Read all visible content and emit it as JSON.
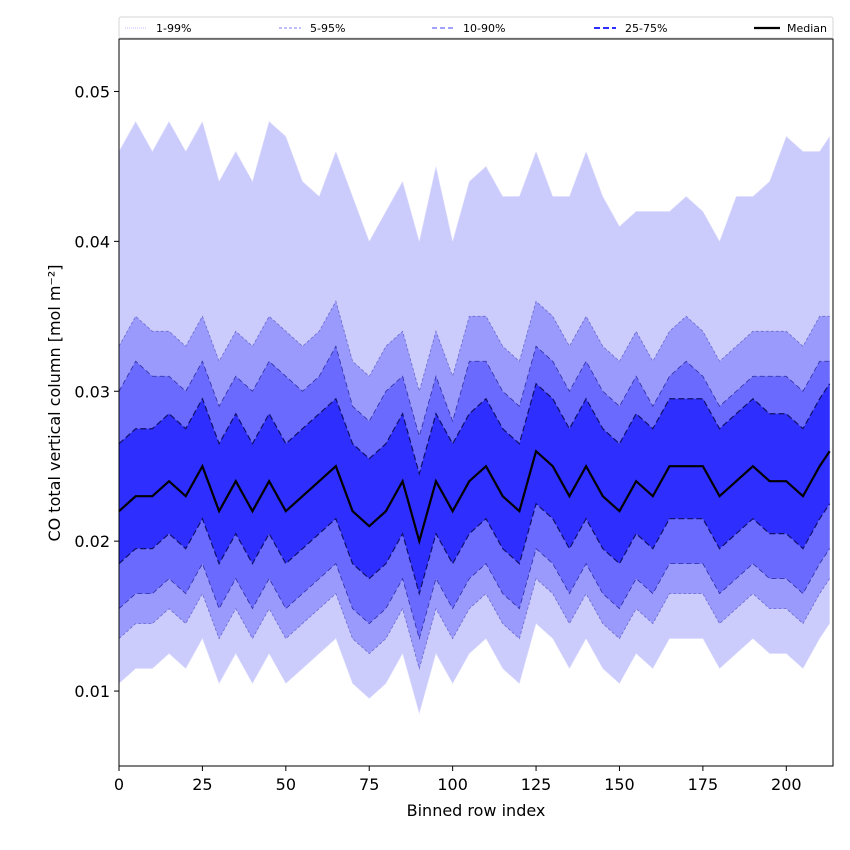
{
  "chart_data": {
    "type": "area",
    "title": "",
    "xlabel": "Binned row index",
    "ylabel": "CO total vertical column [mol m⁻²]",
    "xlim": [
      0,
      214
    ],
    "ylim": [
      0.005,
      0.0535
    ],
    "xticks": [
      0,
      25,
      50,
      75,
      100,
      125,
      150,
      175,
      200
    ],
    "yticks": [
      0.01,
      0.02,
      0.03,
      0.04,
      0.05
    ],
    "ytick_labels": [
      "0.01",
      "0.02",
      "0.03",
      "0.04",
      "0.05"
    ],
    "legend_position": "top (above plot, horizontal)",
    "x": [
      0,
      5,
      10,
      15,
      20,
      25,
      30,
      35,
      40,
      45,
      50,
      55,
      60,
      65,
      70,
      75,
      80,
      85,
      90,
      95,
      100,
      105,
      110,
      115,
      120,
      125,
      130,
      135,
      140,
      145,
      150,
      155,
      160,
      165,
      170,
      175,
      180,
      185,
      190,
      195,
      200,
      205,
      210,
      213
    ],
    "bands": [
      {
        "name": "1-99%",
        "color": "#ccccfc",
        "lower": [
          0.0105,
          0.0115,
          0.0115,
          0.0125,
          0.0115,
          0.0135,
          0.0105,
          0.0125,
          0.0105,
          0.0125,
          0.0105,
          0.0115,
          0.0125,
          0.0135,
          0.0105,
          0.0095,
          0.0105,
          0.0125,
          0.0085,
          0.0125,
          0.0105,
          0.0125,
          0.0135,
          0.0115,
          0.0105,
          0.0145,
          0.0135,
          0.0115,
          0.0135,
          0.0115,
          0.0105,
          0.0125,
          0.0115,
          0.0135,
          0.0135,
          0.0135,
          0.0115,
          0.0125,
          0.0135,
          0.0125,
          0.0125,
          0.0115,
          0.0135,
          0.0145
        ],
        "upper": [
          0.046,
          0.048,
          0.046,
          0.048,
          0.046,
          0.048,
          0.044,
          0.046,
          0.044,
          0.048,
          0.047,
          0.044,
          0.043,
          0.046,
          0.043,
          0.04,
          0.042,
          0.044,
          0.04,
          0.045,
          0.04,
          0.044,
          0.045,
          0.043,
          0.043,
          0.046,
          0.043,
          0.043,
          0.046,
          0.043,
          0.041,
          0.042,
          0.042,
          0.042,
          0.043,
          0.042,
          0.04,
          0.043,
          0.043,
          0.044,
          0.047,
          0.046,
          0.046,
          0.047
        ]
      },
      {
        "name": "5-95%",
        "color": "#9a9afd",
        "lower": [
          0.0135,
          0.0145,
          0.0145,
          0.0155,
          0.0145,
          0.0165,
          0.0135,
          0.0155,
          0.0135,
          0.0155,
          0.0135,
          0.0145,
          0.0155,
          0.0165,
          0.0135,
          0.0125,
          0.0135,
          0.0155,
          0.0115,
          0.0155,
          0.0135,
          0.0155,
          0.0165,
          0.0145,
          0.0135,
          0.0175,
          0.0165,
          0.0145,
          0.0165,
          0.0145,
          0.0135,
          0.0155,
          0.0145,
          0.0165,
          0.0165,
          0.0165,
          0.0145,
          0.0155,
          0.0165,
          0.0155,
          0.0155,
          0.0145,
          0.0165,
          0.0175
        ],
        "upper": [
          0.033,
          0.035,
          0.034,
          0.034,
          0.033,
          0.035,
          0.032,
          0.034,
          0.033,
          0.035,
          0.034,
          0.033,
          0.034,
          0.036,
          0.032,
          0.031,
          0.033,
          0.034,
          0.03,
          0.034,
          0.031,
          0.035,
          0.035,
          0.033,
          0.032,
          0.036,
          0.035,
          0.033,
          0.035,
          0.033,
          0.032,
          0.034,
          0.032,
          0.034,
          0.035,
          0.034,
          0.032,
          0.033,
          0.034,
          0.034,
          0.034,
          0.033,
          0.035,
          0.035
        ]
      },
      {
        "name": "10-90%",
        "color": "#6a6aff",
        "lower": [
          0.0155,
          0.0165,
          0.0165,
          0.0175,
          0.0165,
          0.0185,
          0.0155,
          0.0175,
          0.0155,
          0.0175,
          0.0155,
          0.0165,
          0.0175,
          0.0185,
          0.0155,
          0.0145,
          0.0155,
          0.0175,
          0.0135,
          0.0175,
          0.0155,
          0.0175,
          0.0185,
          0.0165,
          0.0155,
          0.0195,
          0.0185,
          0.0165,
          0.0185,
          0.0165,
          0.0155,
          0.0175,
          0.0165,
          0.0185,
          0.0185,
          0.0185,
          0.0165,
          0.0175,
          0.0185,
          0.0175,
          0.0175,
          0.0165,
          0.0185,
          0.0195
        ],
        "upper": [
          0.03,
          0.032,
          0.031,
          0.031,
          0.03,
          0.032,
          0.029,
          0.031,
          0.03,
          0.032,
          0.031,
          0.03,
          0.031,
          0.033,
          0.029,
          0.028,
          0.03,
          0.031,
          0.027,
          0.031,
          0.028,
          0.032,
          0.032,
          0.03,
          0.029,
          0.033,
          0.032,
          0.03,
          0.032,
          0.03,
          0.029,
          0.031,
          0.029,
          0.031,
          0.032,
          0.031,
          0.029,
          0.03,
          0.031,
          0.031,
          0.031,
          0.03,
          0.032,
          0.032
        ]
      },
      {
        "name": "25-75%",
        "color": "#2e2eff",
        "lower": [
          0.0185,
          0.0195,
          0.0195,
          0.0205,
          0.0195,
          0.0215,
          0.0185,
          0.0205,
          0.0185,
          0.0205,
          0.0185,
          0.0195,
          0.0205,
          0.0215,
          0.0185,
          0.0175,
          0.0185,
          0.0205,
          0.0165,
          0.0205,
          0.0185,
          0.0205,
          0.0215,
          0.0195,
          0.0185,
          0.0225,
          0.0215,
          0.0195,
          0.0215,
          0.0195,
          0.0185,
          0.0205,
          0.0195,
          0.0215,
          0.0215,
          0.0215,
          0.0195,
          0.0205,
          0.0215,
          0.0205,
          0.0205,
          0.0195,
          0.0215,
          0.0225
        ],
        "upper": [
          0.0265,
          0.0275,
          0.0275,
          0.0285,
          0.0275,
          0.0295,
          0.0265,
          0.0285,
          0.0265,
          0.0285,
          0.0265,
          0.0275,
          0.0285,
          0.0295,
          0.0265,
          0.0255,
          0.0265,
          0.0285,
          0.0245,
          0.0285,
          0.0265,
          0.0285,
          0.0295,
          0.0275,
          0.0265,
          0.0305,
          0.0295,
          0.0275,
          0.0295,
          0.0275,
          0.0265,
          0.0285,
          0.0275,
          0.0295,
          0.0295,
          0.0295,
          0.0275,
          0.0285,
          0.0295,
          0.0285,
          0.0285,
          0.0275,
          0.0295,
          0.0305
        ]
      }
    ],
    "median": {
      "name": "Median",
      "color": "#000000",
      "values": [
        0.022,
        0.023,
        0.023,
        0.024,
        0.023,
        0.025,
        0.022,
        0.024,
        0.022,
        0.024,
        0.022,
        0.023,
        0.024,
        0.025,
        0.022,
        0.021,
        0.022,
        0.024,
        0.02,
        0.024,
        0.022,
        0.024,
        0.025,
        0.023,
        0.022,
        0.026,
        0.025,
        0.023,
        0.025,
        0.023,
        0.022,
        0.024,
        0.023,
        0.025,
        0.025,
        0.025,
        0.023,
        0.024,
        0.025,
        0.024,
        0.024,
        0.023,
        0.025,
        0.026
      ]
    },
    "legend": [
      "1-99%",
      "5-95%",
      "10-90%",
      "25-75%",
      "Median"
    ]
  }
}
